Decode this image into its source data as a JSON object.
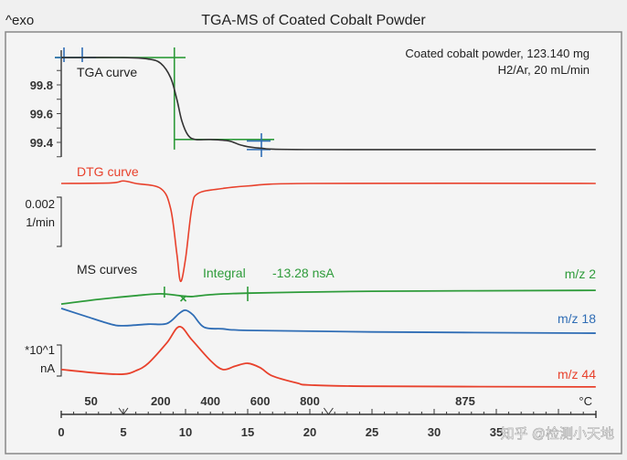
{
  "chart_data": {
    "type": "line",
    "title": "TGA-MS of Coated Cobalt Powder",
    "corner_label": "^exo",
    "annotation": [
      "Coated cobalt powder, 123.140 mg",
      "H2/Ar, 20 mL/min"
    ],
    "x_axis": {
      "ticks": [
        0,
        5,
        10,
        15,
        20,
        25,
        30,
        35
      ],
      "range": [
        0,
        43
      ]
    },
    "temperature_axis": {
      "unit": "°C",
      "labels": [
        {
          "t": 2.4,
          "label": "50"
        },
        {
          "t": 8,
          "label": "200"
        },
        {
          "t": 12,
          "label": "400"
        },
        {
          "t": 16,
          "label": "600"
        },
        {
          "t": 20,
          "label": "800"
        },
        {
          "t": 32.5,
          "label": "875"
        }
      ]
    },
    "tga": {
      "label": "TGA curve",
      "color": "#333333",
      "y_ticks": [
        "99.8",
        "99.6",
        "99.4"
      ],
      "unit": "%",
      "points": [
        [
          0,
          99.99
        ],
        [
          5,
          99.99
        ],
        [
          7,
          99.98
        ],
        [
          8,
          99.95
        ],
        [
          8.8,
          99.85
        ],
        [
          9.3,
          99.7
        ],
        [
          9.7,
          99.55
        ],
        [
          10.2,
          99.45
        ],
        [
          10.8,
          99.42
        ],
        [
          12,
          99.42
        ],
        [
          13.5,
          99.41
        ],
        [
          14.5,
          99.38
        ],
        [
          16,
          99.36
        ],
        [
          20,
          99.35
        ],
        [
          43,
          99.35
        ]
      ]
    },
    "dtg": {
      "label": "DTG curve",
      "color": "#e8412c",
      "scale_bar": [
        "0.002",
        "1/min"
      ],
      "points": [
        [
          0,
          0
        ],
        [
          4,
          2e-05
        ],
        [
          5,
          0.0001
        ],
        [
          6,
          0
        ],
        [
          8,
          -0.0002
        ],
        [
          8.8,
          -0.001
        ],
        [
          9.3,
          -0.0028
        ],
        [
          9.6,
          -0.0039
        ],
        [
          10,
          -0.003
        ],
        [
          10.5,
          -0.001
        ],
        [
          11,
          -0.0004
        ],
        [
          13,
          -0.0002
        ],
        [
          15,
          -0.0001
        ],
        [
          20,
          0
        ],
        [
          43,
          0
        ]
      ]
    },
    "ms": {
      "label": "MS curves",
      "scale_bar": [
        "*10^1",
        "nA"
      ],
      "integral": {
        "label": "Integral",
        "value": "-13.28 nsA",
        "color": "#2e9b3a"
      },
      "series": [
        {
          "name": "m/z 2",
          "color": "#2e9b3a",
          "points": [
            [
              0,
              2.85
            ],
            [
              3,
              3.0
            ],
            [
              6,
              3.12
            ],
            [
              8,
              3.18
            ],
            [
              9.5,
              3.12
            ],
            [
              10.5,
              3.09
            ],
            [
              12,
              3.15
            ],
            [
              15,
              3.2
            ],
            [
              25,
              3.26
            ],
            [
              43,
              3.29
            ]
          ]
        },
        {
          "name": "m/z 18",
          "color": "#2f6db5",
          "points": [
            [
              0,
              2.71
            ],
            [
              2,
              2.45
            ],
            [
              4,
              2.2
            ],
            [
              5,
              2.15
            ],
            [
              7,
              2.2
            ],
            [
              8.5,
              2.22
            ],
            [
              9.5,
              2.55
            ],
            [
              10,
              2.65
            ],
            [
              10.6,
              2.5
            ],
            [
              11.5,
              2.1
            ],
            [
              13,
              2.05
            ],
            [
              15,
              2.0
            ],
            [
              25,
              1.95
            ],
            [
              43,
              1.91
            ]
          ]
        },
        {
          "name": "m/z 44",
          "color": "#e8412c",
          "points": [
            [
              0,
              0.74
            ],
            [
              3,
              0.62
            ],
            [
              5,
              0.59
            ],
            [
              6,
              0.7
            ],
            [
              7,
              0.94
            ],
            [
              8.5,
              1.6
            ],
            [
              9.5,
              2.12
            ],
            [
              10.5,
              1.7
            ],
            [
              12,
              1.03
            ],
            [
              13,
              0.74
            ],
            [
              14,
              0.85
            ],
            [
              15,
              0.94
            ],
            [
              16,
              0.8
            ],
            [
              17,
              0.53
            ],
            [
              19,
              0.3
            ],
            [
              20,
              0.24
            ],
            [
              25,
              0.2
            ],
            [
              43,
              0.18
            ]
          ]
        }
      ]
    },
    "watermark": "知乎 @检测小天地"
  }
}
